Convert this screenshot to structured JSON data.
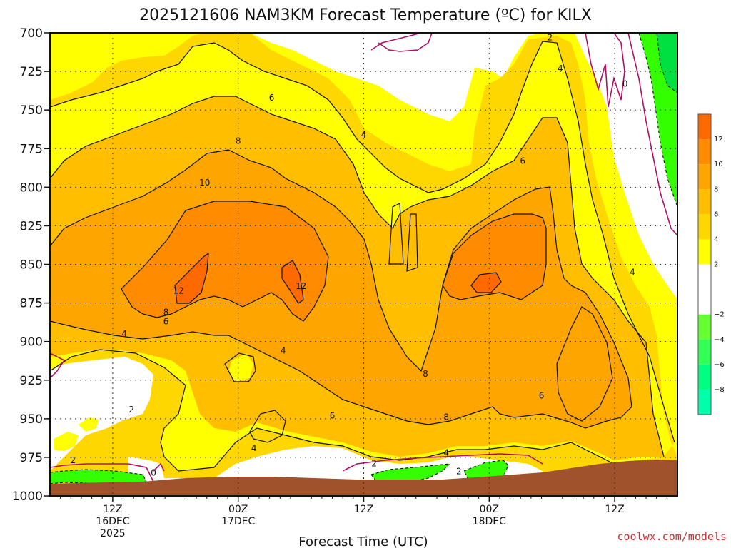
{
  "chart_data": {
    "type": "heatmap",
    "title": "2025121606 NAM3KM Forecast Temperature (ºC) for KILX",
    "xlabel": "Forecast Time (UTC)",
    "ylabel": "",
    "y_axis": {
      "ticks": [
        700,
        725,
        750,
        775,
        800,
        825,
        850,
        875,
        900,
        925,
        950,
        975,
        1000
      ],
      "ylim": [
        700,
        1000
      ],
      "reversed": true
    },
    "x_axis": {
      "xlim_hours": [
        0,
        60
      ],
      "ticks": [
        {
          "hour": 6,
          "lines": [
            "12Z",
            "16DEC",
            "2025"
          ]
        },
        {
          "hour": 18,
          "lines": [
            "00Z",
            "17DEC"
          ]
        },
        {
          "hour": 30,
          "lines": [
            "12Z"
          ]
        },
        {
          "hour": 42,
          "lines": [
            "00Z",
            "18DEC"
          ]
        },
        {
          "hour": 54,
          "lines": [
            "12Z"
          ]
        }
      ]
    },
    "grid": true,
    "colorbar": {
      "position": "right",
      "levels": [
        {
          "label": "12",
          "value": 12,
          "color": "#ff6a00"
        },
        {
          "label": "10",
          "value": 10,
          "color": "#ff8c00"
        },
        {
          "label": "8",
          "value": 8,
          "color": "#ffa500"
        },
        {
          "label": "6",
          "value": 6,
          "color": "#ffbf00"
        },
        {
          "label": "4",
          "value": 4,
          "color": "#ffd700"
        },
        {
          "label": "2",
          "value": 2,
          "color": "#ffff00"
        },
        {
          "label": "",
          "value": 0,
          "color": "#ffffff"
        },
        {
          "label": "−2",
          "value": -2,
          "color": "#ffffff"
        },
        {
          "label": "−4",
          "value": -4,
          "color": "#66ff33"
        },
        {
          "label": "−6",
          "value": -6,
          "color": "#33ff55"
        },
        {
          "label": "−8",
          "value": -8,
          "color": "#00ff80"
        },
        {
          "label": "",
          "value": -10,
          "color": "#00ffaa"
        }
      ]
    },
    "fill_colors": {
      "below_neg4": "#00e040",
      "neg2_0": "#ffffff",
      "0_2": "#ffffff",
      "2_4": "#ffff00",
      "4_6": "#ffd700",
      "6_8": "#ffbf00",
      "8_10": "#ffa500",
      "10_12": "#ff8c00",
      "above_12": "#ff6a00",
      "neg_green": "#33ff00",
      "terrain": "#a0522d"
    },
    "contour_labels": [
      {
        "text": "2",
        "hour": 47.8,
        "p": 703
      },
      {
        "text": "4",
        "hour": 48.8,
        "p": 723
      },
      {
        "text": "0",
        "hour": 55.0,
        "p": 733
      },
      {
        "text": "6",
        "hour": 21.2,
        "p": 742
      },
      {
        "text": "4",
        "hour": 30.0,
        "p": 766
      },
      {
        "text": "8",
        "hour": 18.0,
        "p": 770
      },
      {
        "text": "6",
        "hour": 45.2,
        "p": 783
      },
      {
        "text": "10",
        "hour": 14.8,
        "p": 797
      },
      {
        "text": "4",
        "hour": 55.7,
        "p": 855
      },
      {
        "text": "12",
        "hour": 12.3,
        "p": 867
      },
      {
        "text": "12",
        "hour": 24.0,
        "p": 864
      },
      {
        "text": "8",
        "hour": 11.1,
        "p": 881
      },
      {
        "text": "6",
        "hour": 11.1,
        "p": 887
      },
      {
        "text": "4",
        "hour": 7.1,
        "p": 895
      },
      {
        "text": "4",
        "hour": 22.3,
        "p": 906
      },
      {
        "text": "8",
        "hour": 35.9,
        "p": 921
      },
      {
        "text": "6",
        "hour": 47.0,
        "p": 935
      },
      {
        "text": "2",
        "hour": 7.8,
        "p": 944
      },
      {
        "text": "6",
        "hour": 27.0,
        "p": 948
      },
      {
        "text": "8",
        "hour": 37.9,
        "p": 949
      },
      {
        "text": "4",
        "hour": 19.5,
        "p": 969
      },
      {
        "text": "4",
        "hour": 37.9,
        "p": 972
      },
      {
        "text": "2",
        "hour": 2.2,
        "p": 977
      },
      {
        "text": "2",
        "hour": 31.0,
        "p": 979
      },
      {
        "text": "2",
        "hour": 39.1,
        "p": 984
      },
      {
        "text": "0",
        "hour": 9.9,
        "p": 985
      }
    ],
    "credit": "coolwx.com/models"
  }
}
